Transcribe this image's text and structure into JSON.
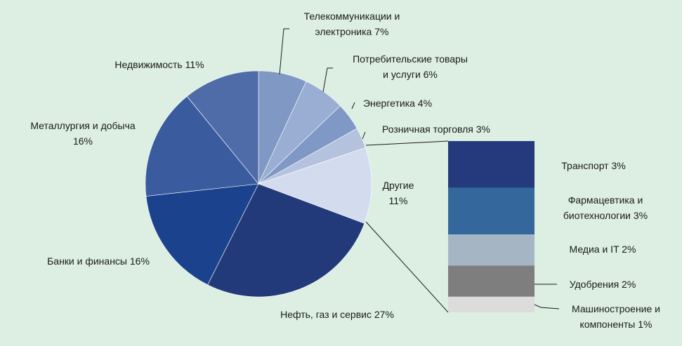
{
  "chart_data": {
    "type": "pie",
    "title": "",
    "slices": [
      {
        "label": "Телекоммуникации и электроника 7%",
        "value": 7,
        "color": "#8099c4"
      },
      {
        "label": "Потребительские товары и услуги 6%",
        "value": 6,
        "color": "#9aaed3"
      },
      {
        "label": "Энергетика 4%",
        "value": 4,
        "color": "#7f98c6"
      },
      {
        "label": "Розничная торговля 3%",
        "value": 3,
        "color": "#b4c2de"
      },
      {
        "label": "Другие 11%",
        "value": 11,
        "color": "#d3dcee"
      },
      {
        "label": "Нефть, газ и сервис 27%",
        "value": 27,
        "color": "#233a7a"
      },
      {
        "label": "Банки и финансы 16%",
        "value": 16,
        "color": "#1b438d"
      },
      {
        "label": "Металлургия и добыча 16%",
        "value": 16,
        "color": "#3a5c9f"
      },
      {
        "label": "Недвижимость 11%",
        "value": 11,
        "color": "#4f6ca8"
      }
    ],
    "breakdown": {
      "of": "Другие 11%",
      "segments": [
        {
          "label": "Транспорт 3%",
          "value": 3,
          "color": "#243a7c"
        },
        {
          "label": "Фармацевтика и биотехнологии 3%",
          "value": 3,
          "color": "#34689c"
        },
        {
          "label": "Медиа и IT 2%",
          "value": 2,
          "color": "#a6b5c4"
        },
        {
          "label": "Удобрения 2%",
          "value": 2,
          "color": "#7e7e7e"
        },
        {
          "label": "Машиностроение и компоненты 1%",
          "value": 1,
          "color": "#dcdcdc"
        }
      ]
    }
  }
}
